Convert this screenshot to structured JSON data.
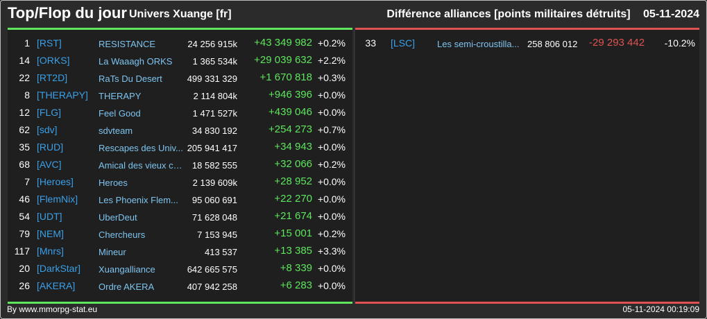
{
  "header": {
    "title": "Top/Flop du jour",
    "universe": "Univers Xuange [fr]",
    "subtitle": "Différence alliances [points militaires détruits]",
    "date": "05-11-2024"
  },
  "colors": {
    "background": "#2b2b2b",
    "panel": "#1f1f1f",
    "top_accent": "#5ee65e",
    "flop_accent": "#e05252",
    "tag": "#3aa0e8",
    "name": "#7ec4f0"
  },
  "top": [
    {
      "rank": "1",
      "tag": "[RST]",
      "name": "RESISTANCE",
      "points": "24 256 915k",
      "diff": "+43 349 982",
      "pct": "+0.2%"
    },
    {
      "rank": "14",
      "tag": "[ORKS]",
      "name": "La Waaagh ORKS",
      "points": "1 365 534k",
      "diff": "+29 039 632",
      "pct": "+2.2%"
    },
    {
      "rank": "22",
      "tag": "[RT2D]",
      "name": "RaTs Du Desert",
      "points": "499 331 329",
      "diff": "+1 670 818",
      "pct": "+0.3%"
    },
    {
      "rank": "8",
      "tag": "[THERAPY]",
      "name": "THERAPY",
      "points": "2 114 804k",
      "diff": "+946 396",
      "pct": "+0.0%"
    },
    {
      "rank": "12",
      "tag": "[FLG]",
      "name": "Feel Good",
      "points": "1 471 527k",
      "diff": "+439 046",
      "pct": "+0.0%"
    },
    {
      "rank": "62",
      "tag": "[sdv]",
      "name": "sdvteam",
      "points": "34 830 192",
      "diff": "+254 273",
      "pct": "+0.7%"
    },
    {
      "rank": "35",
      "tag": "[RUD]",
      "name": "Rescapes des Univ...",
      "points": "205 941 417",
      "diff": "+34 943",
      "pct": "+0.0%"
    },
    {
      "rank": "68",
      "tag": "[AVC]",
      "name": "Amical des vieux co...",
      "points": "18 582 555",
      "diff": "+32 066",
      "pct": "+0.2%"
    },
    {
      "rank": "7",
      "tag": "[Heroes]",
      "name": "Heroes",
      "points": "2 139 609k",
      "diff": "+28 952",
      "pct": "+0.0%"
    },
    {
      "rank": "46",
      "tag": "[FlemNix]",
      "name": "Les Phoenix Flem...",
      "points": "95 060 691",
      "diff": "+22 270",
      "pct": "+0.0%"
    },
    {
      "rank": "54",
      "tag": "[UDT]",
      "name": "UberDeut",
      "points": "71 628 048",
      "diff": "+21 674",
      "pct": "+0.0%"
    },
    {
      "rank": "79",
      "tag": "[NEM]",
      "name": "Chercheurs",
      "points": "7 153 945",
      "diff": "+15 001",
      "pct": "+0.2%"
    },
    {
      "rank": "117",
      "tag": "[Mnrs]",
      "name": "Mineur",
      "points": "413 537",
      "diff": "+13 385",
      "pct": "+3.3%"
    },
    {
      "rank": "20",
      "tag": "[DarkStar]",
      "name": "Xuangalliance",
      "points": "642 665 575",
      "diff": "+8 339",
      "pct": "+0.0%"
    },
    {
      "rank": "26",
      "tag": "[AKERA]",
      "name": "Ordre AKERA",
      "points": "407 942 258",
      "diff": "+6 283",
      "pct": "+0.0%"
    }
  ],
  "flop": [
    {
      "rank": "33",
      "tag": "[LSC]",
      "name": "Les semi-croustilla...",
      "points": "258 806 012",
      "diff": "-29 293 442",
      "pct": "-10.2%"
    }
  ],
  "footer": {
    "source": "By www.mmorpg-stat.eu",
    "timestamp": "05-11-2024 00:19:09"
  }
}
